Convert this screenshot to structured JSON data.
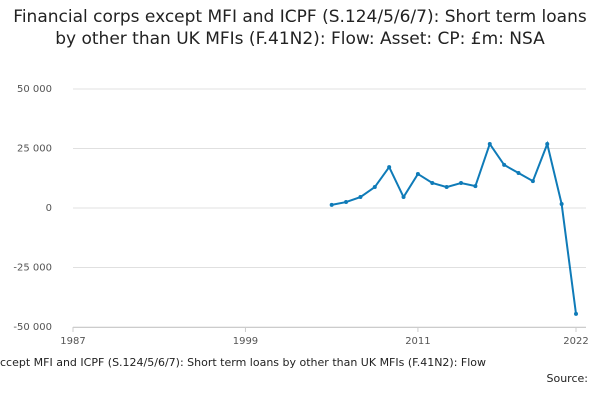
{
  "chart_data": {
    "type": "line",
    "title": "Financial corps except MFI and ICPF (S.124/5/6/7): Short term loans by other than UK MFIs (F.41N2): Flow: Asset: CP: £m: NSA",
    "caption": "ccept MFI and ICPF (S.124/5/6/7): Short term loans by other than UK MFIs (F.41N2): Flow",
    "source": "Source:",
    "x": [
      2005,
      2006,
      2007,
      2008,
      2009,
      2010,
      2011,
      2012,
      2013,
      2014,
      2015,
      2016,
      2017,
      2018,
      2019,
      2020,
      2021,
      2022
    ],
    "series": [
      {
        "color": "#0f7bb8",
        "values": [
          1300,
          2500,
          4600,
          8800,
          17200,
          4600,
          14300,
          10500,
          8800,
          10500,
          9200,
          26900,
          18100,
          14700,
          11300,
          26900,
          1700,
          -44500
        ]
      }
    ],
    "xlim": [
      1987,
      2022
    ],
    "xticks": [
      1987,
      1999,
      2011,
      2022
    ],
    "ylim": [
      -50000,
      50000
    ],
    "yticks": [
      {
        "value": -50000,
        "label": "-50 000"
      },
      {
        "value": -25000,
        "label": "-25 000"
      },
      0,
      {
        "value": 25000,
        "label": "25 000"
      },
      {
        "value": 50000,
        "label": "50 000"
      }
    ],
    "grid": true
  }
}
